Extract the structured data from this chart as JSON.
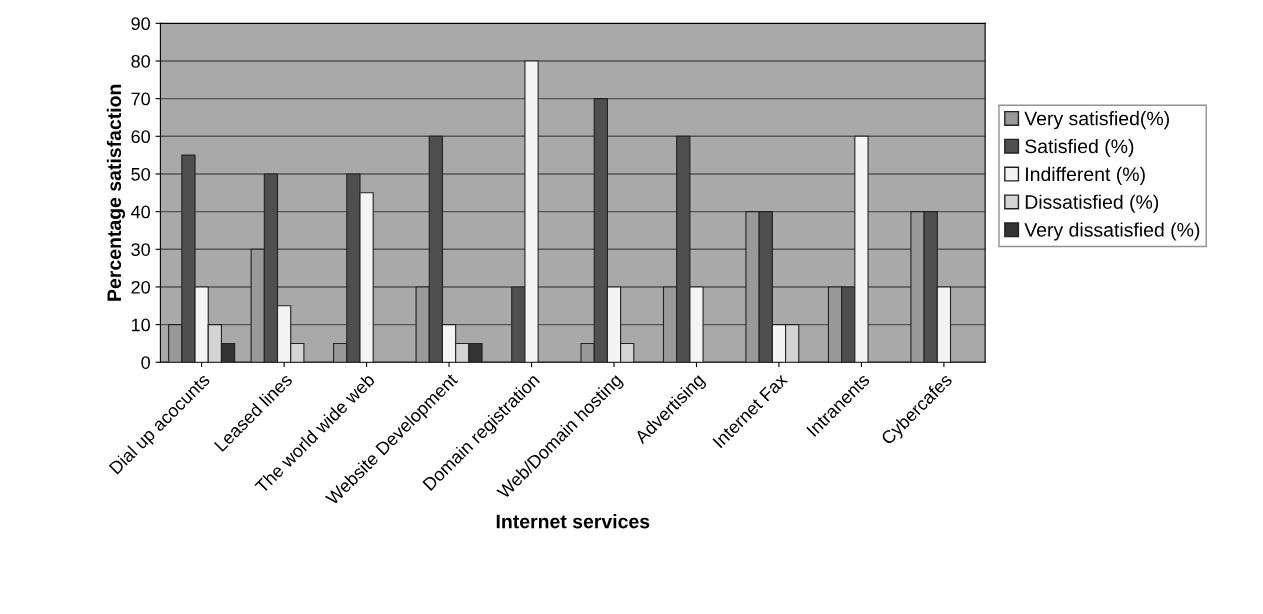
{
  "chart_data": {
    "type": "bar",
    "categories": [
      "Dial up acocunts",
      "Leased lines",
      "The world wide web",
      "Website Development",
      "Domain registration",
      "Web/Domain hosting",
      "Advertising",
      "Internet Fax",
      "Intranents",
      "Cybercafes"
    ],
    "series": [
      {
        "name": "Very satisfied(%)",
        "color": "#999999",
        "values": [
          10,
          30,
          5,
          20,
          0,
          5,
          20,
          40,
          20,
          40
        ]
      },
      {
        "name": "Satisfied (%)",
        "color": "#4f4f4f",
        "values": [
          55,
          50,
          50,
          60,
          20,
          70,
          60,
          40,
          20,
          40
        ]
      },
      {
        "name": "Indifferent (%)",
        "color": "#f4f4f4",
        "values": [
          20,
          15,
          45,
          10,
          80,
          20,
          20,
          10,
          60,
          20
        ]
      },
      {
        "name": "Dissatisfied (%)",
        "color": "#d4d4d4",
        "values": [
          10,
          5,
          0,
          5,
          0,
          5,
          0,
          10,
          0,
          0
        ]
      },
      {
        "name": "Very dissatisfied (%)",
        "color": "#333333",
        "values": [
          5,
          0,
          0,
          5,
          0,
          0,
          0,
          0,
          0,
          0
        ]
      }
    ],
    "xlabel": "Internet services",
    "ylabel": "Percentage satisfaction",
    "ylim": [
      0,
      90
    ],
    "yticks": [
      0,
      10,
      20,
      30,
      40,
      50,
      60,
      70,
      80,
      90
    ],
    "grid": "y",
    "legend": "right"
  }
}
